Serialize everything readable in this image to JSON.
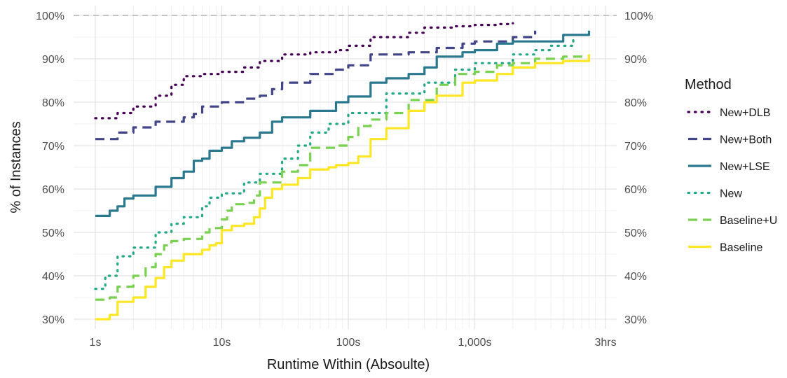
{
  "chart_data": {
    "type": "line",
    "xlabel": "Runtime Within (Absoulte)",
    "ylabel": "% of Instances",
    "x_scale": "log",
    "x_unit": "seconds",
    "xlim": [
      1,
      10800
    ],
    "ylim": [
      30,
      100
    ],
    "x_ticks": [
      {
        "value": 1,
        "label": "1s"
      },
      {
        "value": 10,
        "label": "10s"
      },
      {
        "value": 100,
        "label": "100s"
      },
      {
        "value": 1000,
        "label": "1,000s"
      },
      {
        "value": 10800,
        "label": "3hrs"
      }
    ],
    "y_ticks": [
      {
        "value": 30,
        "label": "30%"
      },
      {
        "value": 40,
        "label": "40%"
      },
      {
        "value": 50,
        "label": "50%"
      },
      {
        "value": 60,
        "label": "60%"
      },
      {
        "value": 70,
        "label": "70%"
      },
      {
        "value": 80,
        "label": "80%"
      },
      {
        "value": 90,
        "label": "90%"
      },
      {
        "value": 100,
        "label": "100%"
      }
    ],
    "y_ticks_right": true,
    "reference_line": {
      "y": 100,
      "style": "dashed"
    },
    "grid": true,
    "legend": {
      "title": "Method",
      "position": "right"
    },
    "series": [
      {
        "name": "New+DLB",
        "color": "#440154",
        "dash": "dotted",
        "points": [
          [
            1,
            76.3
          ],
          [
            1.5,
            77.5
          ],
          [
            2,
            79
          ],
          [
            3,
            81.5
          ],
          [
            4,
            84
          ],
          [
            5,
            86
          ],
          [
            7,
            86.5
          ],
          [
            10,
            87
          ],
          [
            15,
            88
          ],
          [
            20,
            89.5
          ],
          [
            30,
            91
          ],
          [
            50,
            91.5
          ],
          [
            80,
            92
          ],
          [
            100,
            93
          ],
          [
            150,
            95
          ],
          [
            300,
            96
          ],
          [
            400,
            97.2
          ],
          [
            700,
            97.5
          ],
          [
            1000,
            97.8
          ],
          [
            1500,
            98
          ],
          [
            2000,
            98.2
          ]
        ]
      },
      {
        "name": "New+Both",
        "color": "#414487",
        "dash": "dashed",
        "points": [
          [
            1,
            71.5
          ],
          [
            1.5,
            73
          ],
          [
            2,
            74.2
          ],
          [
            3,
            75.5
          ],
          [
            5,
            76.5
          ],
          [
            6,
            77.3
          ],
          [
            7,
            79
          ],
          [
            10,
            80
          ],
          [
            15,
            80.8
          ],
          [
            20,
            81.5
          ],
          [
            25,
            83
          ],
          [
            30,
            84.5
          ],
          [
            50,
            86.5
          ],
          [
            80,
            87.5
          ],
          [
            100,
            88.5
          ],
          [
            150,
            91
          ],
          [
            300,
            91.5
          ],
          [
            500,
            92.5
          ],
          [
            800,
            93.5
          ],
          [
            1000,
            94
          ],
          [
            2000,
            95
          ],
          [
            2500,
            95
          ],
          [
            3000,
            96.5
          ]
        ]
      },
      {
        "name": "New+LSE",
        "color": "#2A788E",
        "dash": "solid",
        "points": [
          [
            1,
            53.8
          ],
          [
            1.3,
            55
          ],
          [
            1.5,
            56
          ],
          [
            1.7,
            57.8
          ],
          [
            2,
            58.5
          ],
          [
            3,
            60.5
          ],
          [
            4,
            62.5
          ],
          [
            5,
            64
          ],
          [
            6,
            66.5
          ],
          [
            7,
            67
          ],
          [
            8,
            68.8
          ],
          [
            10,
            69.5
          ],
          [
            12,
            71
          ],
          [
            15,
            71.8
          ],
          [
            20,
            73
          ],
          [
            25,
            75.5
          ],
          [
            30,
            76.5
          ],
          [
            50,
            78
          ],
          [
            80,
            80
          ],
          [
            100,
            81.3
          ],
          [
            150,
            84.5
          ],
          [
            200,
            85.5
          ],
          [
            300,
            86.5
          ],
          [
            400,
            88
          ],
          [
            500,
            90.5
          ],
          [
            800,
            91.5
          ],
          [
            1000,
            92
          ],
          [
            1500,
            93.5
          ],
          [
            2000,
            94
          ],
          [
            5000,
            95.5
          ],
          [
            8000,
            96.5
          ]
        ]
      },
      {
        "name": "New",
        "color": "#22A884",
        "dash": "dotted",
        "points": [
          [
            1,
            37
          ],
          [
            1.2,
            40
          ],
          [
            1.5,
            44.5
          ],
          [
            2,
            46.5
          ],
          [
            3,
            50
          ],
          [
            4,
            52
          ],
          [
            5,
            53.5
          ],
          [
            7,
            56
          ],
          [
            8,
            58
          ],
          [
            10,
            59
          ],
          [
            15,
            61.5
          ],
          [
            20,
            63.5
          ],
          [
            30,
            67
          ],
          [
            40,
            70
          ],
          [
            50,
            73
          ],
          [
            70,
            75
          ],
          [
            100,
            77.5
          ],
          [
            200,
            82
          ],
          [
            400,
            84.5
          ],
          [
            700,
            87.5
          ],
          [
            1000,
            89
          ],
          [
            2000,
            91
          ],
          [
            3000,
            92
          ],
          [
            4000,
            93
          ],
          [
            6000,
            94.5
          ]
        ]
      },
      {
        "name": "Baseline+U",
        "color": "#7AD151",
        "dash": "dashed",
        "points": [
          [
            1,
            34.5
          ],
          [
            1.3,
            35
          ],
          [
            1.5,
            37.5
          ],
          [
            2,
            40
          ],
          [
            2.5,
            42
          ],
          [
            3,
            45
          ],
          [
            3.5,
            47
          ],
          [
            4,
            48
          ],
          [
            5,
            48.5
          ],
          [
            7,
            50
          ],
          [
            8,
            51
          ],
          [
            10,
            53
          ],
          [
            11,
            55
          ],
          [
            12,
            56.5
          ],
          [
            15,
            56.8
          ],
          [
            18,
            58.5
          ],
          [
            20,
            61.5
          ],
          [
            30,
            64
          ],
          [
            40,
            65.5
          ],
          [
            50,
            69.5
          ],
          [
            80,
            70
          ],
          [
            100,
            72
          ],
          [
            120,
            74.5
          ],
          [
            150,
            76
          ],
          [
            200,
            77.5
          ],
          [
            300,
            80.5
          ],
          [
            500,
            84
          ],
          [
            700,
            86.5
          ],
          [
            1000,
            87
          ],
          [
            1500,
            88.5
          ],
          [
            2000,
            89
          ],
          [
            3000,
            90
          ],
          [
            5000,
            90.5
          ],
          [
            8000,
            91
          ]
        ]
      },
      {
        "name": "Baseline",
        "color": "#FDE725",
        "dash": "solid",
        "points": [
          [
            1,
            30
          ],
          [
            1.3,
            31
          ],
          [
            1.5,
            34
          ],
          [
            2,
            35
          ],
          [
            2.5,
            37.5
          ],
          [
            3,
            39.5
          ],
          [
            3.5,
            42
          ],
          [
            4,
            43.5
          ],
          [
            5,
            45
          ],
          [
            7,
            46
          ],
          [
            8,
            47
          ],
          [
            9,
            47.5
          ],
          [
            10,
            50.5
          ],
          [
            12,
            51.5
          ],
          [
            15,
            52
          ],
          [
            18,
            53.5
          ],
          [
            20,
            55.5
          ],
          [
            22,
            58
          ],
          [
            25,
            60
          ],
          [
            30,
            61
          ],
          [
            40,
            62.5
          ],
          [
            50,
            64.5
          ],
          [
            70,
            65
          ],
          [
            80,
            65.5
          ],
          [
            100,
            66
          ],
          [
            120,
            67.5
          ],
          [
            150,
            71.5
          ],
          [
            200,
            74
          ],
          [
            300,
            78
          ],
          [
            400,
            80
          ],
          [
            500,
            81.5
          ],
          [
            800,
            84.5
          ],
          [
            1000,
            85
          ],
          [
            1500,
            86.5
          ],
          [
            2000,
            88
          ],
          [
            3000,
            89
          ],
          [
            5000,
            89.5
          ],
          [
            8000,
            91
          ]
        ]
      }
    ]
  }
}
